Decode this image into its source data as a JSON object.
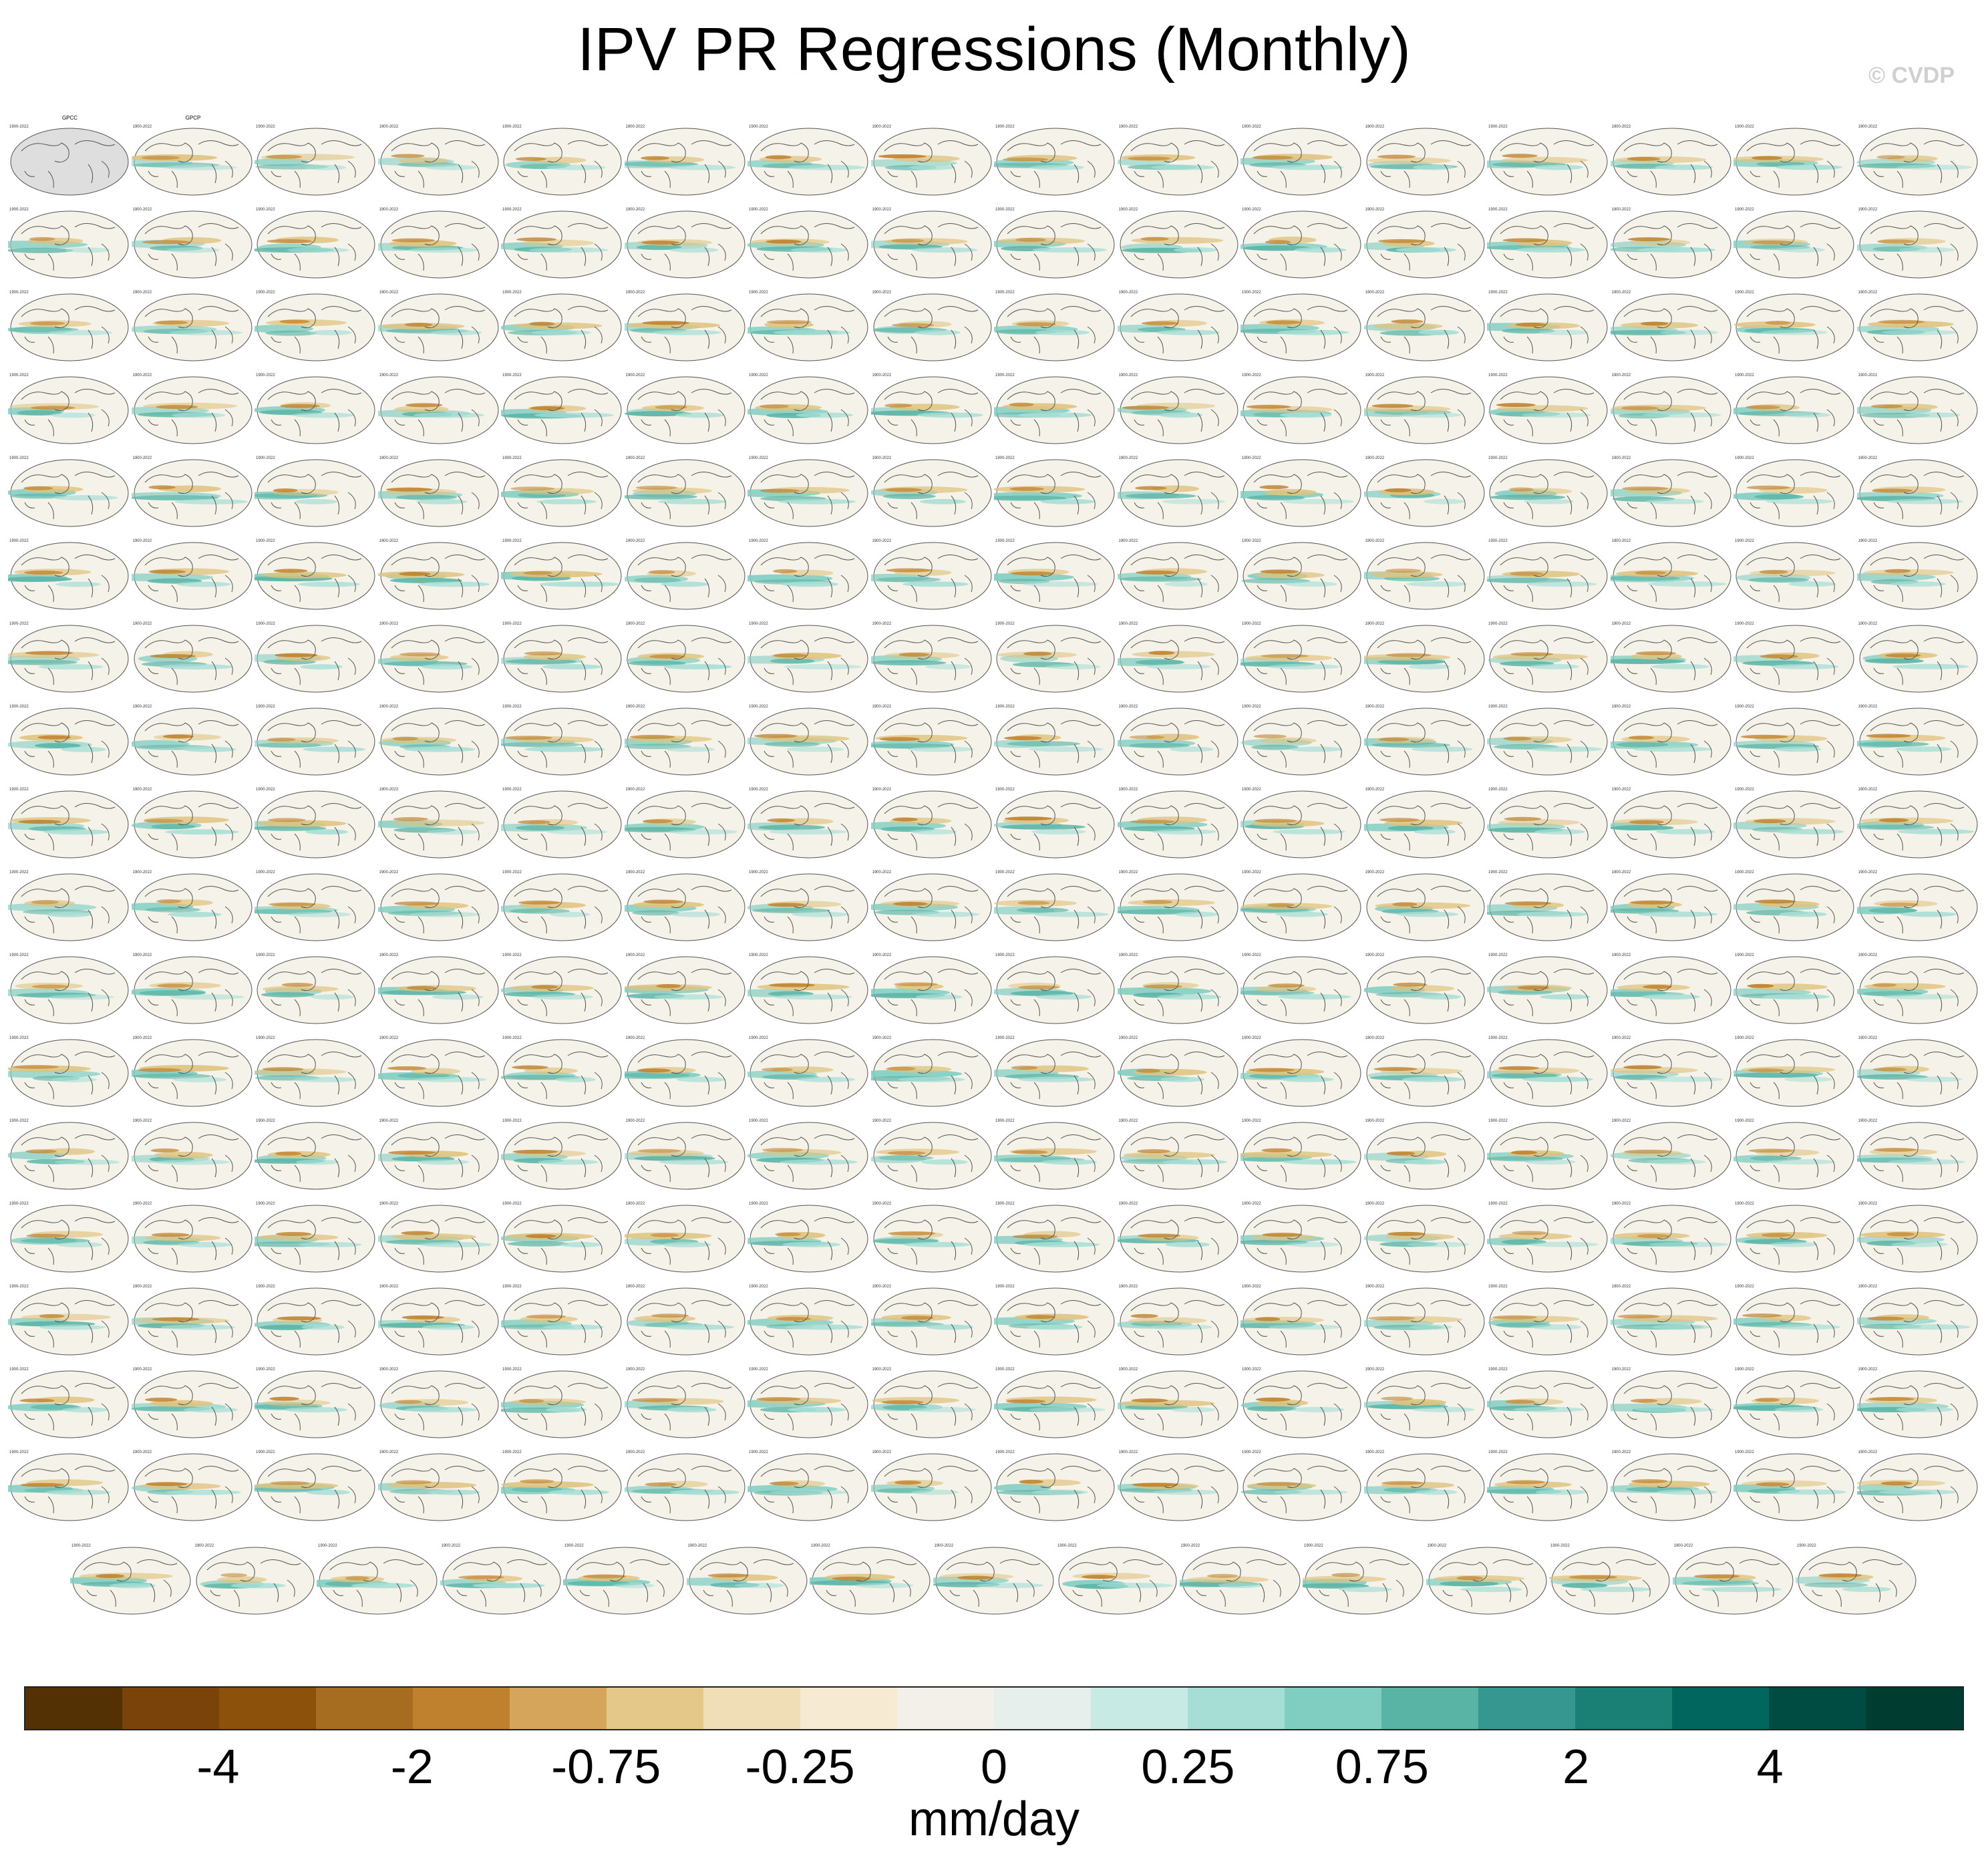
{
  "title": "IPV PR Regressions (Monthly)",
  "watermark": "© CVDP",
  "colorbar": {
    "colors": [
      "#543005",
      "#7a4309",
      "#8c510a",
      "#a66d20",
      "#bf812d",
      "#d4a55b",
      "#e3c88a",
      "#f0dfb6",
      "#f6ebd2",
      "#f3f0ea",
      "#e6efec",
      "#c7eae5",
      "#a6ded5",
      "#80cdc1",
      "#5ab4a6",
      "#35978f",
      "#1a7f74",
      "#01665e",
      "#004c43",
      "#003c30"
    ],
    "tick_labels": [
      "-4",
      "-2",
      "-0.75",
      "-0.25",
      "0",
      "0.25",
      "0.75",
      "2",
      "4"
    ],
    "units": "mm/day"
  },
  "panels": {
    "first_titles": [
      "GPCC",
      "GPCP"
    ],
    "year_range_label": "1900-2022",
    "model_title_colors": {
      "ACCESS": "#2a6f9e",
      "CanESM": "#4a8c9a",
      "CESM1": "#c2703a",
      "CESM2": "#8d86c9",
      "CSIRO": "#d9a37c"
    }
  },
  "icons": {
    "map_panel": "global-map-icon"
  }
}
